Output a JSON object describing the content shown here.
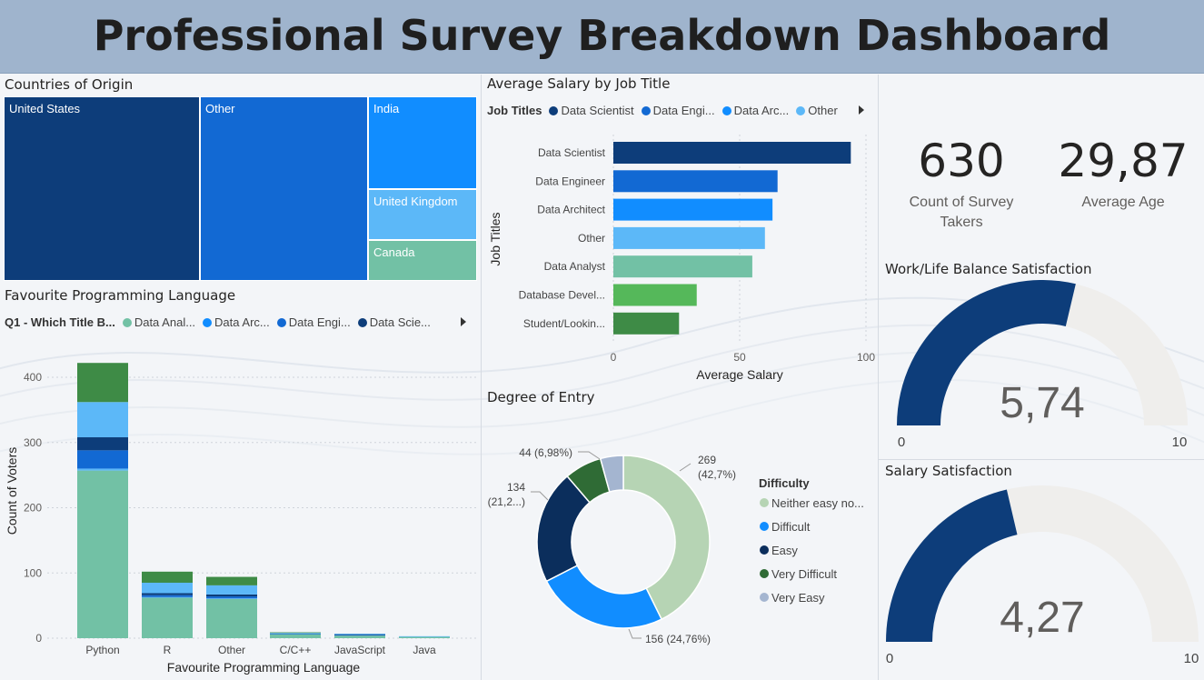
{
  "header": {
    "title": "Professional Survey Breakdown Dashboard"
  },
  "colors": {
    "navy": "#0d3d7a",
    "blue": "#1269d3",
    "mid_blue": "#118dff",
    "light_blue": "#5cb8f8",
    "teal": "#72c1a5",
    "green": "#55b85a",
    "dark_green": "#3e8b46",
    "gauge_bg": "#efeeec"
  },
  "countries": {
    "title": "Countries of Origin",
    "chart_data": {
      "type": "treemap",
      "items": [
        {
          "label": "United States"
        },
        {
          "label": "Other"
        },
        {
          "label": "India"
        },
        {
          "label": "United Kingdom"
        },
        {
          "label": "Canada"
        }
      ]
    }
  },
  "salary": {
    "title": "Average Salary by Job Title",
    "legend_title": "Job Titles",
    "legend": [
      "Data Scientist",
      "Data Engi...",
      "Data Arc...",
      "Other"
    ],
    "chart_data": {
      "type": "bar",
      "orientation": "horizontal",
      "categories": [
        "Data Scientist",
        "Data Engineer",
        "Data Architect",
        "Other",
        "Data Analyst",
        "Database Devel...",
        "Student/Lookin..."
      ],
      "values": [
        94,
        65,
        63,
        60,
        55,
        33,
        26
      ],
      "xlabel": "Average Salary",
      "ylabel": "Job Titles",
      "xlim": [
        0,
        100
      ],
      "xticks": [
        "0",
        "50",
        "100"
      ]
    }
  },
  "kpis": [
    {
      "value": "630",
      "label_line1": "Count of Survey",
      "label_line2": "Takers"
    },
    {
      "value": "29,87",
      "label_line1": "Average Age",
      "label_line2": ""
    }
  ],
  "worklife": {
    "title": "Work/Life Balance Satisfaction",
    "chart_data": {
      "type": "gauge",
      "value": 5.74,
      "value_label": "5,74",
      "min": 0,
      "max": 10,
      "min_label": "0",
      "max_label": "10"
    }
  },
  "salary_sat": {
    "title": "Salary Satisfaction",
    "chart_data": {
      "type": "gauge",
      "value": 4.27,
      "value_label": "4,27",
      "min": 0,
      "max": 10,
      "min_label": "0",
      "max_label": "10"
    }
  },
  "languages": {
    "title": "Favourite Programming Language",
    "legend_title": "Q1 - Which Title B...",
    "legend": [
      "Data Anal...",
      "Data Arc...",
      "Data Engi...",
      "Data Scie..."
    ],
    "chart_data": {
      "type": "stacked-bar",
      "categories": [
        "Python",
        "R",
        "Other",
        "C/C++",
        "JavaScript",
        "Java"
      ],
      "series": [
        {
          "values": [
            257,
            62,
            60,
            6,
            4,
            2
          ]
        },
        {
          "values": [
            3,
            1,
            1,
            0,
            0,
            0
          ]
        },
        {
          "values": [
            28,
            3,
            3,
            1,
            1,
            0
          ]
        },
        {
          "values": [
            20,
            3,
            3,
            0,
            1,
            0
          ]
        },
        {
          "values": [
            54,
            16,
            14,
            1,
            1,
            1
          ]
        },
        {
          "values": [
            60,
            17,
            13,
            1,
            0,
            0
          ]
        }
      ],
      "xlabel": "Favourite Programming Language",
      "ylabel": "Count of Voters",
      "ylim": [
        0,
        420
      ],
      "yticks": [
        0,
        100,
        200,
        300,
        400
      ]
    }
  },
  "degree": {
    "title": "Degree of Entry",
    "legend_title": "Difficulty",
    "chart_data": {
      "type": "donut",
      "slices": [
        {
          "label": "Neither easy no...",
          "value": 269,
          "data_label_1": "269",
          "data_label_2": "(42,7%)"
        },
        {
          "label": "Difficult",
          "value": 156,
          "data_label_1": "156 (24,76%)",
          "data_label_2": ""
        },
        {
          "label": "Easy",
          "value": 134,
          "data_label_1": "134",
          "data_label_2": "(21,2...)"
        },
        {
          "label": "Very Difficult",
          "value": 44,
          "data_label_1": "44 (6,98%)",
          "data_label_2": ""
        },
        {
          "label": "Very Easy",
          "value": 27,
          "data_label_1": "",
          "data_label_2": ""
        }
      ]
    }
  }
}
